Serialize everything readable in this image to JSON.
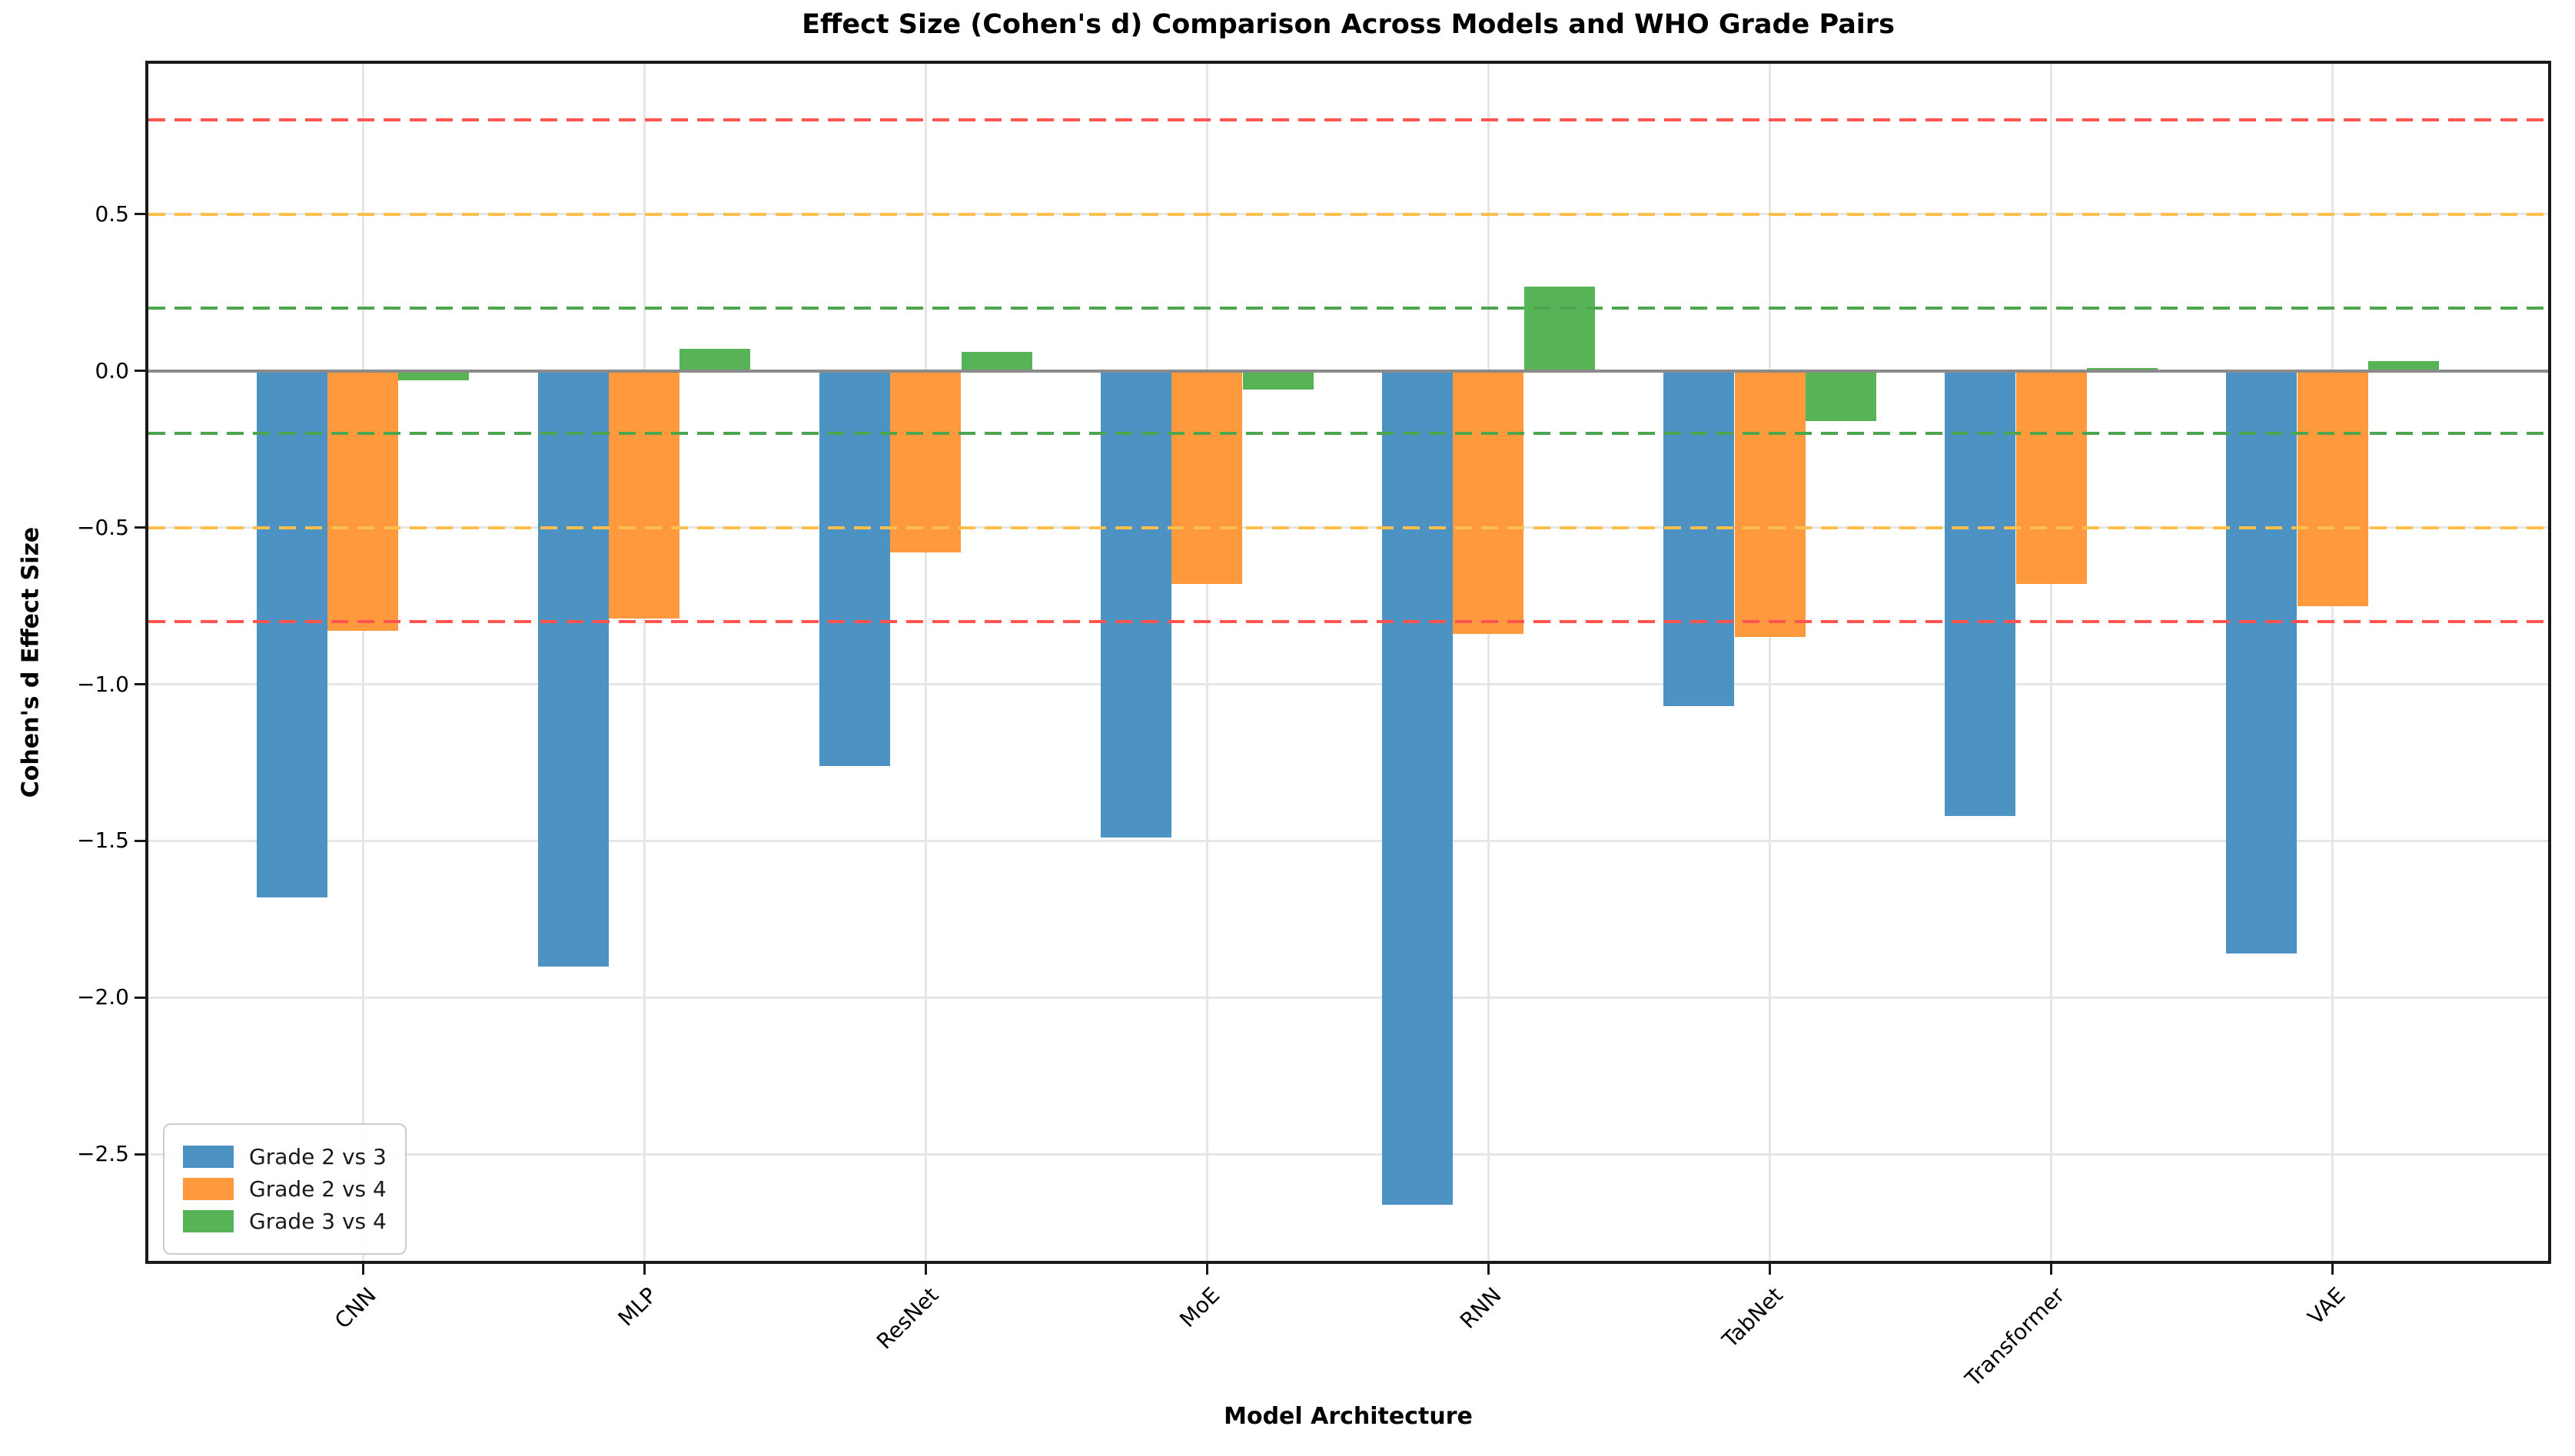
{
  "chart_data": {
    "type": "bar",
    "title": "Effect Size (Cohen's d) Comparison Across Models and WHO Grade Pairs",
    "xlabel": "Model Architecture",
    "ylabel": "Cohen's d Effect Size",
    "categories": [
      "CNN",
      "MLP",
      "ResNet",
      "MoE",
      "RNN",
      "TabNet",
      "Transformer",
      "VAE"
    ],
    "series": [
      {
        "name": "Grade 2 vs 3",
        "color": "#4C92C3",
        "values": [
          -1.68,
          -1.9,
          -1.26,
          -1.49,
          -2.66,
          -1.07,
          -1.42,
          -1.86
        ]
      },
      {
        "name": "Grade 2 vs 4",
        "color": "#FF993E",
        "values": [
          -0.83,
          -0.79,
          -0.58,
          -0.68,
          -0.84,
          -0.85,
          -0.68,
          -0.75
        ]
      },
      {
        "name": "Grade 3 vs 4",
        "color": "#56B356",
        "values": [
          -0.03,
          0.07,
          0.06,
          -0.06,
          0.27,
          -0.16,
          0.01,
          0.03
        ]
      }
    ],
    "ylim": [
      -2.84,
      0.98
    ],
    "y_ticks": [
      {
        "value": 0.5,
        "label": "0.5"
      },
      {
        "value": 0.0,
        "label": "0.0"
      },
      {
        "value": -0.5,
        "label": "−0.5"
      },
      {
        "value": -1.0,
        "label": "−1.0"
      },
      {
        "value": -1.5,
        "label": "−1.5"
      },
      {
        "value": -2.0,
        "label": "−2.0"
      },
      {
        "value": -2.5,
        "label": "−2.5"
      }
    ],
    "reference_lines": [
      {
        "value": 0.8,
        "color": "#FF5450",
        "style": "dashed"
      },
      {
        "value": 0.5,
        "color": "#FFBF4D",
        "style": "dashed"
      },
      {
        "value": 0.2,
        "color": "#4DA64D",
        "style": "dashed"
      },
      {
        "value": 0.0,
        "color": "#8A8A8A",
        "style": "solid"
      },
      {
        "value": -0.2,
        "color": "#4DA64D",
        "style": "dashed"
      },
      {
        "value": -0.5,
        "color": "#FFBF4D",
        "style": "dashed"
      },
      {
        "value": -0.8,
        "color": "#FF5450",
        "style": "dashed"
      }
    ],
    "legend": {
      "position": "lower left",
      "entries": [
        "Grade 2 vs 3",
        "Grade 2 vs 4",
        "Grade 3 vs 4"
      ]
    },
    "grid": true,
    "grid_color": "#E6E6E6"
  }
}
